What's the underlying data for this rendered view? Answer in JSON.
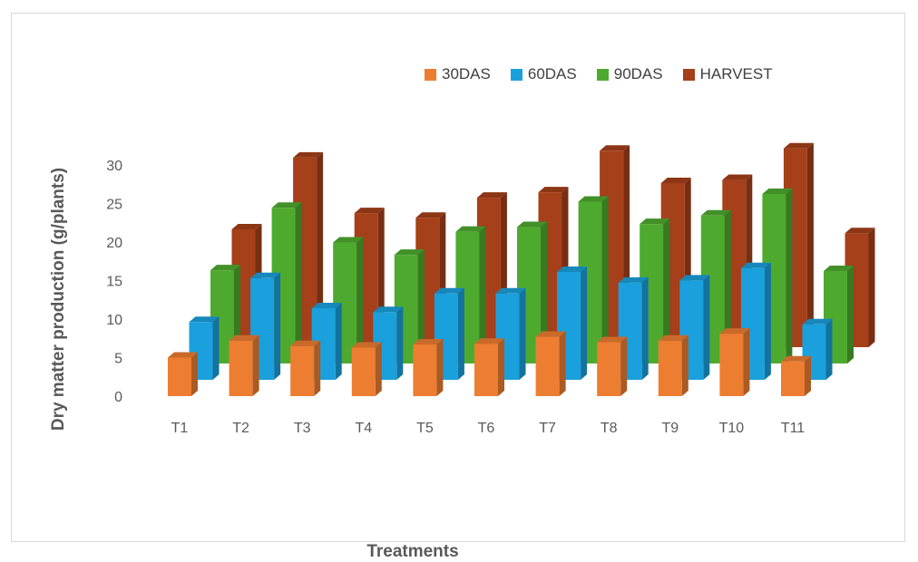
{
  "chart_data": {
    "type": "bar",
    "title": "",
    "xlabel": "Treatments",
    "ylabel": "Dry matter production (g/plants)",
    "categories": [
      "T1",
      "T2",
      "T3",
      "T4",
      "T5",
      "T6",
      "T7",
      "T8",
      "T9",
      "T10",
      "T11"
    ],
    "ylim": [
      0,
      30
    ],
    "yticks": [
      0,
      5,
      10,
      15,
      20,
      25,
      30
    ],
    "legend_position": "top-right",
    "series": [
      {
        "name": "30DAS",
        "color": "#ED7D31",
        "values": [
          5.0,
          7.2,
          6.5,
          6.3,
          6.7,
          6.8,
          7.7,
          7.0,
          7.2,
          8.1,
          4.5
        ]
      },
      {
        "name": "60DAS",
        "color": "#1AA0DC",
        "values": [
          7.5,
          13.2,
          9.3,
          8.8,
          11.2,
          11.2,
          14.0,
          12.6,
          12.9,
          14.5,
          7.2
        ]
      },
      {
        "name": "90DAS",
        "color": "#4EAA2F",
        "values": [
          12.1,
          20.2,
          15.7,
          14.1,
          17.1,
          17.7,
          21.0,
          18.1,
          19.2,
          22.0,
          12.0
        ]
      },
      {
        "name": "HARVEST",
        "color": "#A5401A",
        "values": [
          15.3,
          24.6,
          17.4,
          16.8,
          19.4,
          20.1,
          25.5,
          21.3,
          21.7,
          25.8,
          14.8
        ]
      }
    ]
  }
}
